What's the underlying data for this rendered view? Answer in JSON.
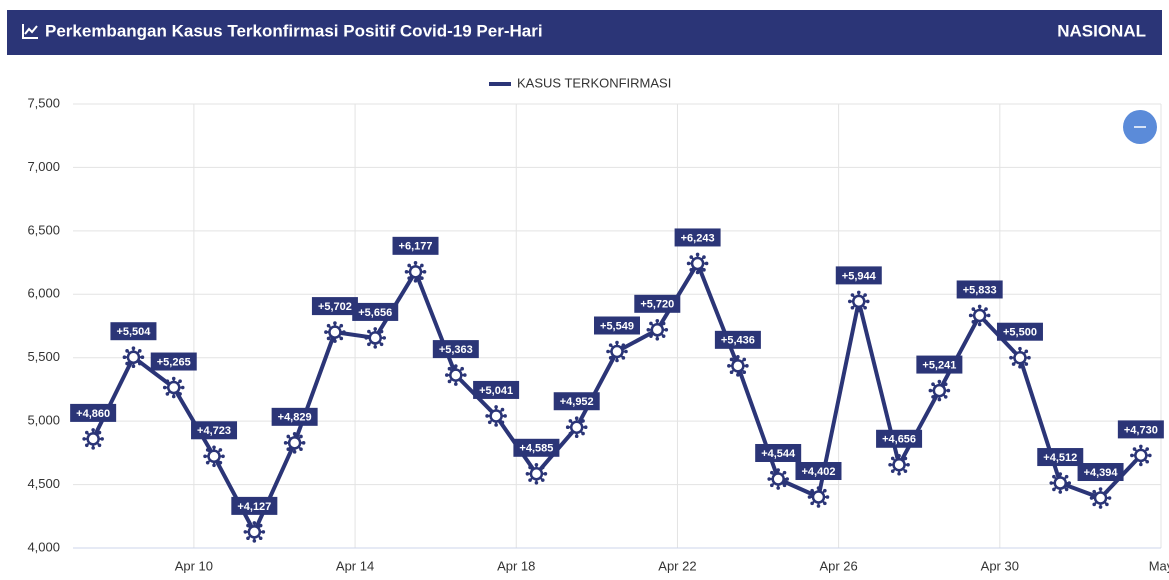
{
  "header": {
    "title": "Perkembangan Kasus Terkonfirmasi Positif Covid-19 Per-Hari",
    "region": "NASIONAL"
  },
  "chart_data": {
    "type": "line",
    "x": [
      7.5,
      8.5,
      9.5,
      10.5,
      11.5,
      12.5,
      13.5,
      14.5,
      15.5,
      16.5,
      17.5,
      18.5,
      19.5,
      20.5,
      21.5,
      22.5,
      23.5,
      24.5,
      25.5,
      26.5,
      27.5,
      28.5,
      29.5,
      30.5,
      31.5,
      32.5,
      33.5
    ],
    "series": [
      {
        "name": "KASUS TERKONFIRMASI",
        "color": "#2b3577",
        "values": [
          4860,
          5504,
          5265,
          4723,
          4127,
          4829,
          5702,
          5656,
          6177,
          5363,
          5041,
          4585,
          4952,
          5549,
          5720,
          6243,
          5436,
          4544,
          4402,
          5944,
          4656,
          5241,
          5833,
          5500,
          4512,
          4394,
          4730
        ],
        "value_labels": [
          "+4,860",
          "+5,504",
          "+5,265",
          "+4,723",
          "+4,127",
          "+4,829",
          "+5,702",
          "+5,656",
          "+6,177",
          "+5,363",
          "+5,041",
          "+4,585",
          "+4,952",
          "+5,549",
          "+5,720",
          "+6,243",
          "+5,436",
          "+4,544",
          "+4,402",
          "+5,944",
          "+4,656",
          "+5,241",
          "+5,833",
          "+5,500",
          "+4,512",
          "+4,394",
          "+4,730"
        ]
      }
    ],
    "xlim": [
      7,
      34
    ],
    "xticks": [
      {
        "value": 10,
        "label": "Apr 10"
      },
      {
        "value": 14,
        "label": "Apr 14"
      },
      {
        "value": 18,
        "label": "Apr 18"
      },
      {
        "value": 22,
        "label": "Apr 22"
      },
      {
        "value": 26,
        "label": "Apr 26"
      },
      {
        "value": 30,
        "label": "Apr 30"
      },
      {
        "value": 34,
        "label": "May"
      }
    ],
    "ylim": [
      4000,
      7500
    ],
    "yticks": [
      {
        "value": 4000,
        "label": "4,000"
      },
      {
        "value": 4500,
        "label": "4,500"
      },
      {
        "value": 5000,
        "label": "5,000"
      },
      {
        "value": 5500,
        "label": "5,500"
      },
      {
        "value": 6000,
        "label": "6,000"
      },
      {
        "value": 6500,
        "label": "6,500"
      },
      {
        "value": 7000,
        "label": "7,000"
      },
      {
        "value": 7500,
        "label": "7,500"
      }
    ],
    "grid": true,
    "legend": "top"
  }
}
